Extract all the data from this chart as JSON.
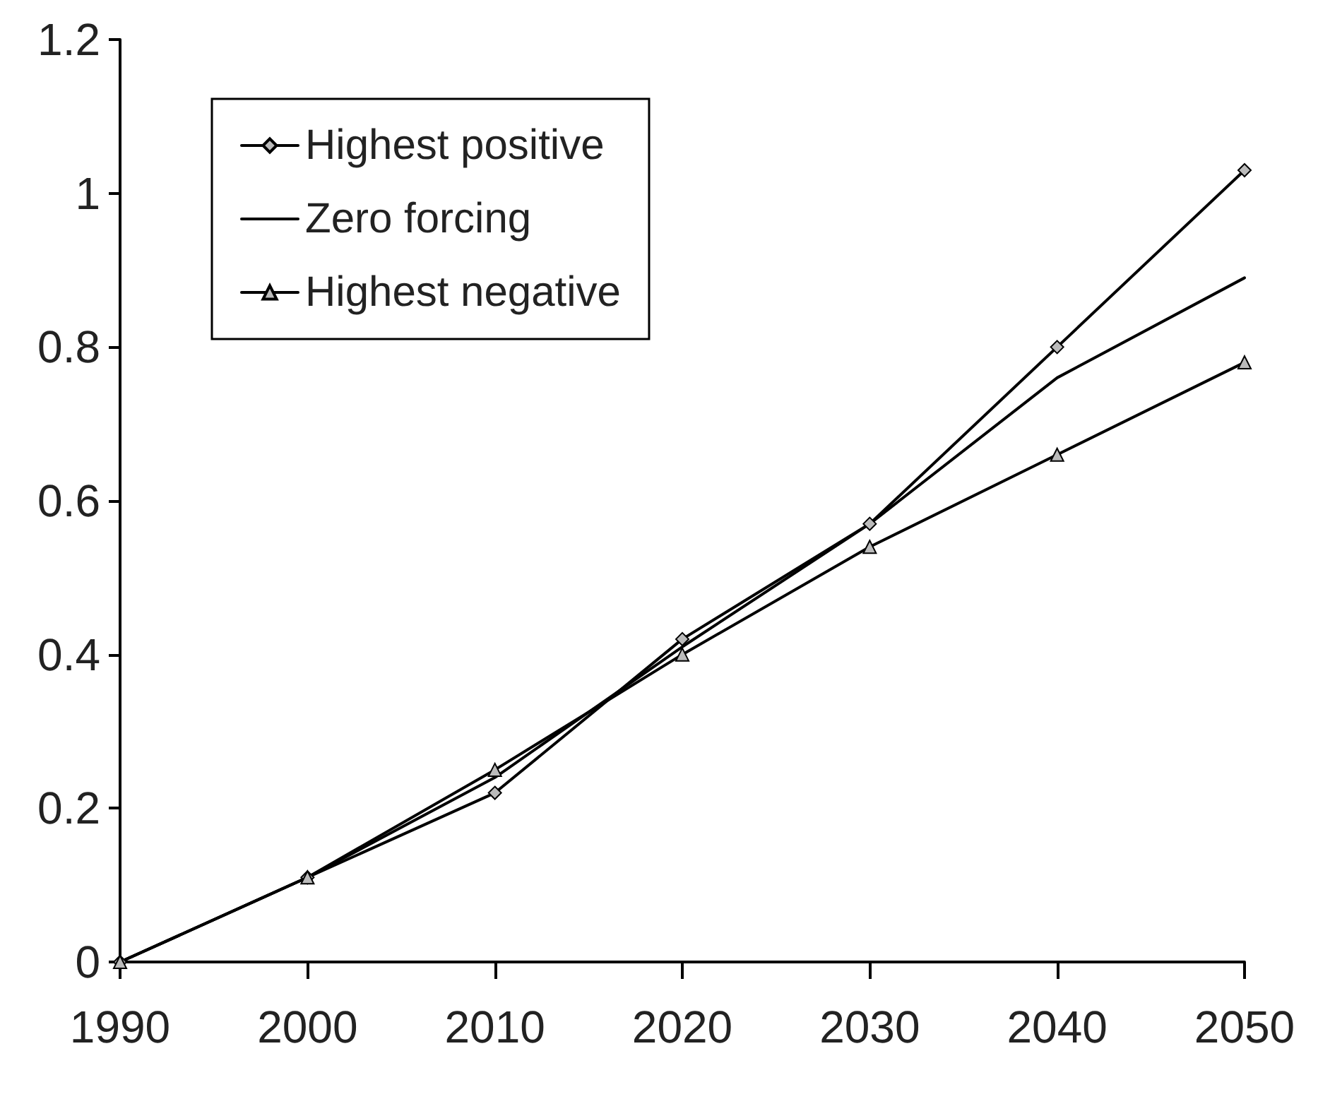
{
  "chart_data": {
    "type": "line",
    "x": [
      1990,
      2000,
      2010,
      2020,
      2030,
      2040,
      2050
    ],
    "xlim": [
      1990,
      2050
    ],
    "xticks": [
      1990,
      2000,
      2010,
      2020,
      2030,
      2040,
      2050
    ],
    "ylim": [
      0,
      1.2
    ],
    "yticks": [
      0,
      0.2,
      0.4,
      0.6,
      0.8,
      1,
      1.2
    ],
    "series": [
      {
        "name": "Highest positive",
        "color": "#000000",
        "marker": "diamond",
        "values": [
          0,
          0.11,
          0.22,
          0.42,
          0.57,
          0.8,
          1.03
        ]
      },
      {
        "name": "Zero forcing",
        "color": "#000000",
        "marker": "none",
        "values": [
          0,
          0.11,
          0.24,
          0.41,
          0.57,
          0.76,
          0.89
        ]
      },
      {
        "name": "Highest negative",
        "color": "#000000",
        "marker": "triangle",
        "values": [
          0,
          0.11,
          0.25,
          0.4,
          0.54,
          0.66,
          0.78
        ]
      }
    ],
    "legend": "top left",
    "grid": false,
    "line_style": "solid"
  }
}
